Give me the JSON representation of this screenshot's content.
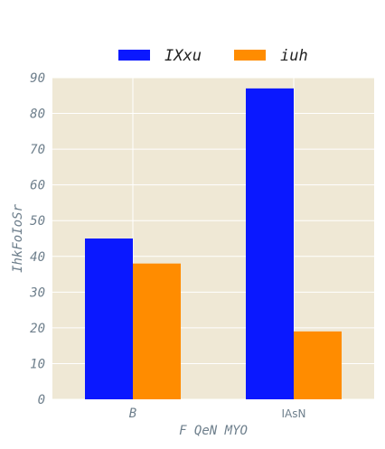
{
  "chart_data": {
    "type": "bar",
    "categories": [
      "B",
      "IAsN"
    ],
    "series": [
      {
        "name": "IXxu",
        "values": [
          45,
          87
        ],
        "color": "#0a18ff"
      },
      {
        "name": "iuh",
        "values": [
          38,
          19
        ],
        "color": "#ff8c00"
      }
    ],
    "xlabel": "F QeN MYO",
    "ylabel": "IhkFoIoSr",
    "ylim": [
      0,
      90
    ],
    "yticks": [
      0,
      10,
      20,
      30,
      40,
      50,
      60,
      70,
      80,
      90
    ],
    "grid": true,
    "legend_position": "top-center",
    "background_color": "#efe8d5",
    "grid_color": "#ffffff"
  }
}
